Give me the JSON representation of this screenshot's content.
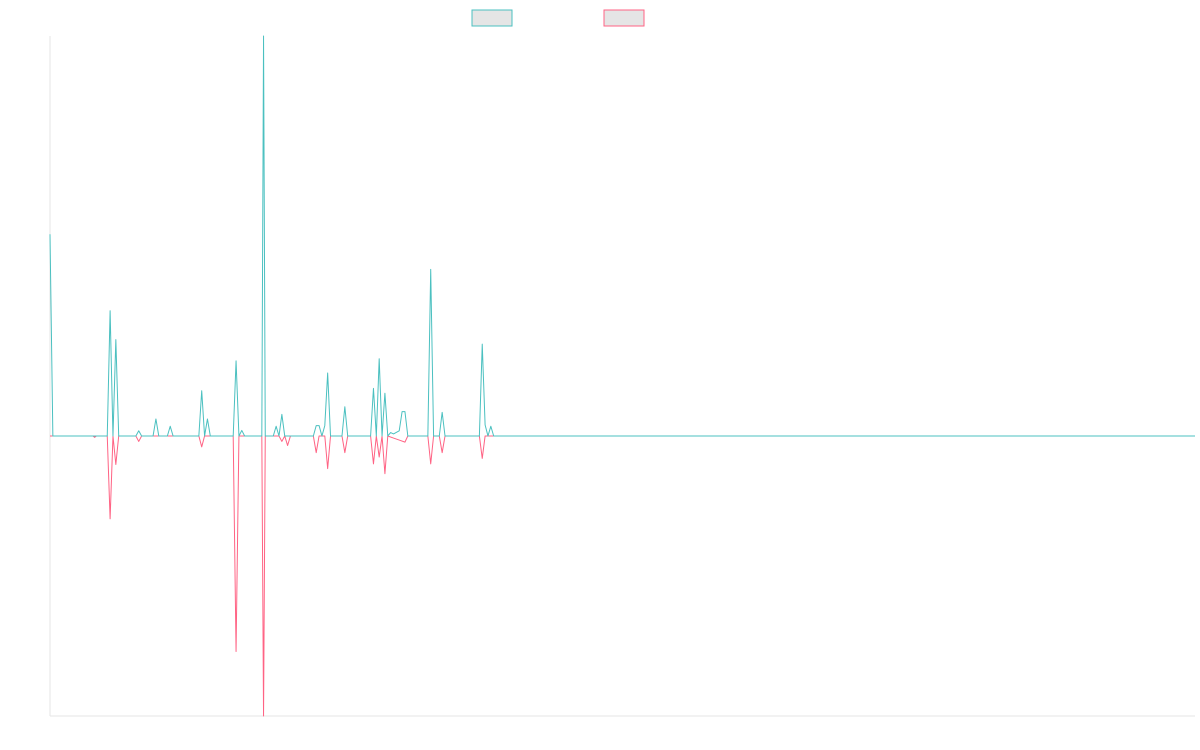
{
  "chart_data": {
    "type": "line",
    "title": "",
    "xlabel": "",
    "ylabel": "",
    "legend": {
      "placement": "top-center",
      "show": true
    },
    "grid": false,
    "colors": {
      "series_a": "#4bc0c0",
      "series_b": "#ff6384",
      "legend_fill": "#e5e5e5",
      "axis": "#e6e6e6"
    },
    "xlim": [
      0,
      200
    ],
    "ylim": [
      -100,
      100
    ],
    "series": [
      {
        "name": "",
        "color": "#4bc0c0",
        "points": [
          [
            0,
            58
          ],
          [
            0.5,
            0
          ],
          [
            10,
            0
          ],
          [
            10.5,
            36
          ],
          [
            11,
            0
          ],
          [
            11.5,
            27.7
          ],
          [
            12,
            0
          ],
          [
            15,
            0
          ],
          [
            15.5,
            1.5
          ],
          [
            16,
            0
          ],
          [
            18,
            0
          ],
          [
            18.5,
            4.9
          ],
          [
            19,
            0
          ],
          [
            20.5,
            0
          ],
          [
            21,
            2.8
          ],
          [
            21.5,
            0
          ],
          [
            26,
            0
          ],
          [
            26.5,
            13
          ],
          [
            27,
            0
          ],
          [
            27.5,
            4.9
          ],
          [
            28,
            0
          ],
          [
            32,
            0
          ],
          [
            32.5,
            21.6
          ],
          [
            33,
            0
          ],
          [
            33.5,
            1.6
          ],
          [
            34,
            0
          ],
          [
            37,
            0
          ],
          [
            37.3,
            115
          ],
          [
            37.6,
            0
          ],
          [
            39,
            0
          ],
          [
            39.5,
            2.8
          ],
          [
            40,
            0
          ],
          [
            40.5,
            6.2
          ],
          [
            41,
            0
          ],
          [
            46,
            0
          ],
          [
            46.5,
            3
          ],
          [
            47,
            3
          ],
          [
            47.5,
            0
          ],
          [
            48,
            3
          ],
          [
            48.5,
            18.1
          ],
          [
            49,
            0
          ],
          [
            51,
            0
          ],
          [
            51.5,
            8.4
          ],
          [
            52,
            0
          ],
          [
            56,
            0
          ],
          [
            56.5,
            13.7
          ],
          [
            57,
            0
          ],
          [
            57.5,
            22.2
          ],
          [
            58,
            0
          ],
          [
            58.5,
            12.3
          ],
          [
            59,
            0
          ],
          [
            59.5,
            1
          ],
          [
            60,
            0.6
          ],
          [
            61,
            1.5
          ],
          [
            61.5,
            7
          ],
          [
            62,
            7
          ],
          [
            62.5,
            0
          ],
          [
            66,
            0
          ],
          [
            66.5,
            47.9
          ],
          [
            67,
            0
          ],
          [
            68,
            0
          ],
          [
            68.5,
            6.8
          ],
          [
            69,
            0
          ],
          [
            75,
            0
          ],
          [
            75.5,
            26.4
          ],
          [
            76,
            3.2
          ],
          [
            76.5,
            0
          ],
          [
            77,
            2.8
          ],
          [
            77.5,
            0
          ],
          [
            200,
            0
          ]
        ]
      },
      {
        "name": "",
        "color": "#ff6384",
        "points": [
          [
            0,
            0
          ],
          [
            7.5,
            0
          ],
          [
            7.8,
            -0.4
          ],
          [
            8.1,
            0
          ],
          [
            10,
            0
          ],
          [
            10.5,
            -24.4
          ],
          [
            11,
            0
          ],
          [
            11.5,
            -8.4
          ],
          [
            12,
            0
          ],
          [
            15,
            0
          ],
          [
            15.5,
            -1.6
          ],
          [
            16,
            0
          ],
          [
            26,
            0
          ],
          [
            26.5,
            -3.2
          ],
          [
            27,
            0
          ],
          [
            32,
            0
          ],
          [
            32.5,
            -63.5
          ],
          [
            33,
            0
          ],
          [
            37,
            0
          ],
          [
            37.3,
            -82.5
          ],
          [
            37.6,
            0
          ],
          [
            40,
            0
          ],
          [
            40.5,
            -1.6
          ],
          [
            41,
            0
          ],
          [
            41.5,
            -2.8
          ],
          [
            42,
            0
          ],
          [
            46,
            0
          ],
          [
            46.5,
            -4.9
          ],
          [
            47,
            0
          ],
          [
            48,
            0
          ],
          [
            48.5,
            -9.6
          ],
          [
            49,
            0
          ],
          [
            51,
            0
          ],
          [
            51.5,
            -4.9
          ],
          [
            52,
            0
          ],
          [
            56,
            0
          ],
          [
            56.5,
            -8.2
          ],
          [
            57,
            0
          ],
          [
            57.5,
            -6.2
          ],
          [
            58,
            0
          ],
          [
            58.5,
            -11.1
          ],
          [
            59,
            0
          ],
          [
            60,
            -0.6
          ],
          [
            61,
            -1.2
          ],
          [
            62,
            -1.8
          ],
          [
            62.5,
            0
          ],
          [
            66,
            0
          ],
          [
            66.5,
            -8.2
          ],
          [
            67,
            0
          ],
          [
            68,
            0
          ],
          [
            68.5,
            -4.9
          ],
          [
            69,
            0
          ],
          [
            75,
            0
          ],
          [
            75.5,
            -6.6
          ],
          [
            76,
            0
          ],
          [
            200,
            0
          ]
        ]
      }
    ]
  }
}
